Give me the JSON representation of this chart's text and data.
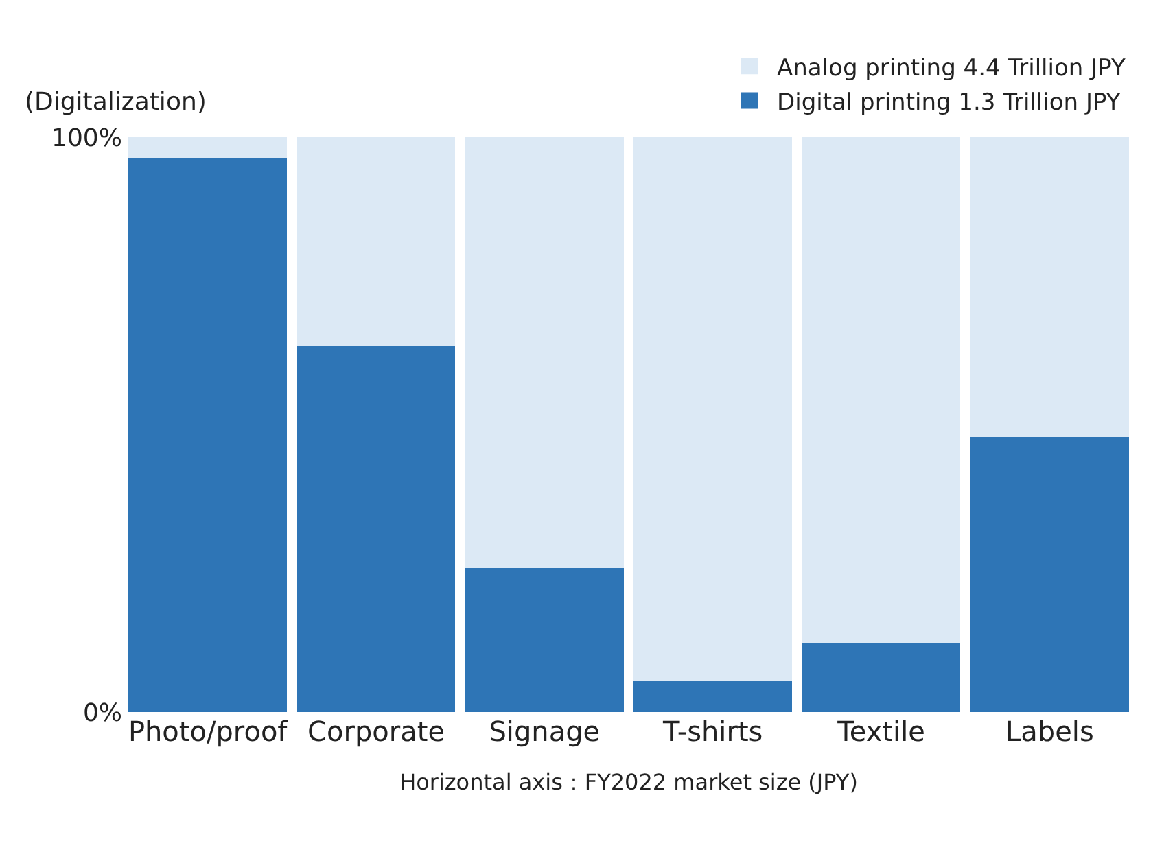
{
  "chart_data": {
    "type": "bar",
    "stacked": true,
    "ylabel": "(Digitalization)",
    "xlabel": "Horizontal axis：FY2022 market size (JPY)",
    "categories": [
      "Photo/proof",
      "Corporate",
      "Signage",
      "T-shirts",
      "Textile",
      "Labels"
    ],
    "series": [
      {
        "name": "Digital printing 1.3 Trillion JPY",
        "color": "#2e75b6",
        "values": [
          96.3,
          63.6,
          25.1,
          5.5,
          11.9,
          47.8
        ]
      },
      {
        "name": "Analog printing 4.4 Trillion JPY",
        "color": "#dce9f5",
        "values": [
          3.7,
          36.4,
          74.9,
          94.5,
          88.1,
          52.2
        ]
      }
    ],
    "ylim": [
      0,
      100
    ],
    "yticks": [
      {
        "value": 0,
        "label": "0%"
      },
      {
        "value": 100,
        "label": "100%"
      }
    ],
    "legend": "top right"
  }
}
